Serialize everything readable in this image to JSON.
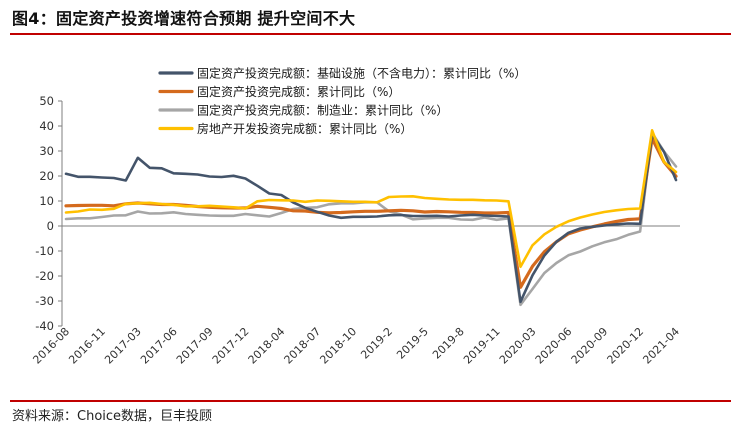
{
  "header": {
    "title": "图4：固定资产投资增速符合预期 提升空间不大"
  },
  "footer": {
    "source": "资料来源：Choice数据，巨丰投顾"
  },
  "chart_data": {
    "type": "line",
    "ylim": [
      -40,
      50
    ],
    "yticks": [
      50,
      40,
      30,
      20,
      10,
      0,
      -10,
      -20,
      -30,
      -40
    ],
    "xtick_labels": [
      "2016-08",
      "2016-11",
      "2017-03",
      "2017-06",
      "2017-09",
      "2017-12",
      "2018-04",
      "2018-07",
      "2018-10",
      "2019-2",
      "2019-5",
      "2019-8",
      "2019-11",
      "2020-03",
      "2020-06",
      "2020-09",
      "2020-12",
      "2021-04"
    ],
    "x": [
      "2016-08",
      "2016-09",
      "2016-10",
      "2016-11",
      "2016-12",
      "2017-02",
      "2017-03",
      "2017-04",
      "2017-05",
      "2017-06",
      "2017-07",
      "2017-08",
      "2017-09",
      "2017-10",
      "2017-11",
      "2017-12",
      "2018-02",
      "2018-03",
      "2018-04",
      "2018-05",
      "2018-06",
      "2018-07",
      "2018-08",
      "2018-09",
      "2018-10",
      "2018-11",
      "2018-12",
      "2019-02",
      "2019-03",
      "2019-04",
      "2019-05",
      "2019-06",
      "2019-07",
      "2019-08",
      "2019-09",
      "2019-10",
      "2019-11",
      "2019-12",
      "2020-02",
      "2020-03",
      "2020-04",
      "2020-05",
      "2020-06",
      "2020-07",
      "2020-08",
      "2020-09",
      "2020-10",
      "2020-11",
      "2020-12",
      "2021-02",
      "2021-03",
      "2021-04"
    ],
    "series": [
      {
        "name": "固定资产投资完成额：基础设施（不含电力）：累计同比（%）",
        "color": "#44546a",
        "width": 2.6,
        "values": [
          20.9,
          19.7,
          19.7,
          19.4,
          19.2,
          18.2,
          27.3,
          23.3,
          23.1,
          21.1,
          20.9,
          20.6,
          19.8,
          19.6,
          20.1,
          19.0,
          16.1,
          13.0,
          12.4,
          9.4,
          7.3,
          5.7,
          4.2,
          3.3,
          3.7,
          3.7,
          3.8,
          4.3,
          4.4,
          4.0,
          4.0,
          4.1,
          3.8,
          4.2,
          4.5,
          4.2,
          4.0,
          3.8,
          -30.3,
          -19.7,
          -11.8,
          -6.3,
          -2.7,
          -1.0,
          -0.3,
          0.2,
          0.7,
          1.0,
          0.9,
          36.6,
          29.7,
          18.4
        ]
      },
      {
        "name": "固定资产投资完成额：累计同比（%）",
        "color": "#d46a1d",
        "width": 3.2,
        "values": [
          8.1,
          8.2,
          8.3,
          8.3,
          8.1,
          8.9,
          9.2,
          8.9,
          8.6,
          8.6,
          8.3,
          7.8,
          7.5,
          7.3,
          7.2,
          7.2,
          7.9,
          7.5,
          7.0,
          6.1,
          6.0,
          5.5,
          5.3,
          5.4,
          5.7,
          5.9,
          5.9,
          6.1,
          6.3,
          6.1,
          5.6,
          5.8,
          5.7,
          5.5,
          5.4,
          5.2,
          5.2,
          5.4,
          -24.5,
          -16.1,
          -10.3,
          -6.3,
          -3.1,
          -1.6,
          -0.3,
          0.8,
          1.8,
          2.6,
          2.9,
          35.0,
          25.6,
          19.9
        ]
      },
      {
        "name": "固定资产投资完成额：制造业：累计同比（%）",
        "color": "#a6a6a6",
        "width": 2.6,
        "values": [
          2.8,
          3.1,
          3.1,
          3.6,
          4.2,
          4.3,
          5.8,
          5.0,
          5.1,
          5.5,
          4.8,
          4.5,
          4.2,
          4.1,
          4.1,
          4.8,
          4.3,
          3.8,
          5.2,
          6.8,
          7.3,
          7.5,
          8.7,
          9.1,
          9.1,
          9.5,
          9.5,
          5.9,
          4.6,
          2.7,
          3.0,
          3.3,
          3.3,
          2.6,
          2.5,
          3.4,
          2.5,
          3.1,
          -31.5,
          -25.2,
          -18.8,
          -14.8,
          -11.7,
          -10.2,
          -8.1,
          -6.5,
          -5.3,
          -3.5,
          -2.2,
          37.3,
          29.8,
          23.8
        ]
      },
      {
        "name": "房地产开发投资完成额：累计同比（%）",
        "color": "#ffc000",
        "width": 2.6,
        "values": [
          5.4,
          5.8,
          6.6,
          6.5,
          6.9,
          8.9,
          9.1,
          9.3,
          8.8,
          8.5,
          7.9,
          7.9,
          8.1,
          7.8,
          7.5,
          7.0,
          9.9,
          10.4,
          10.3,
          10.2,
          9.7,
          10.2,
          10.1,
          9.9,
          9.7,
          9.7,
          9.5,
          11.6,
          11.8,
          11.9,
          11.2,
          10.9,
          10.6,
          10.5,
          10.5,
          10.3,
          10.2,
          9.9,
          -16.3,
          -7.7,
          -3.3,
          -0.3,
          1.9,
          3.4,
          4.6,
          5.6,
          6.3,
          6.8,
          7.0,
          38.3,
          25.6,
          21.6
        ]
      }
    ]
  }
}
